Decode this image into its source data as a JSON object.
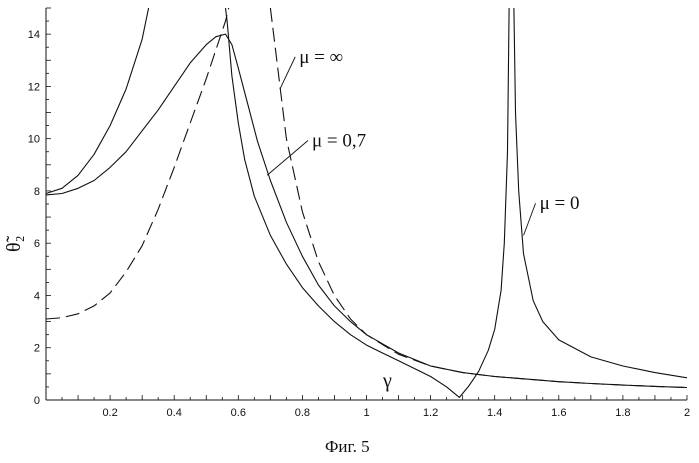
{
  "chart_data": {
    "type": "line",
    "title": "",
    "caption": "Фиг. 5",
    "xlabel": "γ",
    "ylabel": "θ̃₂",
    "xlim": [
      0,
      2
    ],
    "ylim": [
      0,
      15
    ],
    "x_ticks": [
      {
        "value": 0.2,
        "label": "0.2"
      },
      {
        "value": 0.4,
        "label": "0.4"
      },
      {
        "value": 0.6,
        "label": "0.6"
      },
      {
        "value": 0.8,
        "label": "0.8"
      },
      {
        "value": 1.0,
        "label": "1"
      },
      {
        "value": 1.2,
        "label": "1.2"
      },
      {
        "value": 1.4,
        "label": "1.4"
      },
      {
        "value": 1.6,
        "label": "1.6"
      },
      {
        "value": 1.8,
        "label": "1.8"
      },
      {
        "value": 2.0,
        "label": "2"
      }
    ],
    "y_ticks": [
      {
        "value": 0,
        "label": "0"
      },
      {
        "value": 2,
        "label": "2"
      },
      {
        "value": 4,
        "label": "4"
      },
      {
        "value": 6,
        "label": "6"
      },
      {
        "value": 8,
        "label": "8"
      },
      {
        "value": 10,
        "label": "10"
      },
      {
        "value": 12,
        "label": "12"
      },
      {
        "value": 14,
        "label": "14"
      }
    ],
    "grid": false,
    "series": [
      {
        "name": "μ = ∞",
        "style": "dashed",
        "color": "#111111",
        "points": [
          [
            0.0,
            3.1
          ],
          [
            0.05,
            3.15
          ],
          [
            0.1,
            3.3
          ],
          [
            0.15,
            3.6
          ],
          [
            0.2,
            4.1
          ],
          [
            0.25,
            4.9
          ],
          [
            0.3,
            5.9
          ],
          [
            0.35,
            7.3
          ],
          [
            0.4,
            8.9
          ],
          [
            0.45,
            10.6
          ],
          [
            0.5,
            12.3
          ],
          [
            0.53,
            13.4
          ],
          [
            0.56,
            14.5
          ],
          [
            0.57,
            15.0
          ],
          null,
          [
            0.7,
            15.0
          ],
          [
            0.72,
            13.0
          ],
          [
            0.75,
            10.0
          ],
          [
            0.8,
            7.2
          ],
          [
            0.85,
            5.3
          ],
          [
            0.9,
            4.0
          ],
          [
            0.95,
            3.1
          ],
          [
            1.0,
            2.5
          ],
          [
            1.1,
            1.75
          ],
          [
            1.2,
            1.3
          ],
          [
            1.3,
            1.05
          ],
          [
            1.4,
            0.9
          ],
          [
            1.5,
            0.8
          ],
          [
            1.6,
            0.7
          ],
          [
            1.7,
            0.63
          ],
          [
            1.8,
            0.57
          ],
          [
            1.9,
            0.52
          ],
          [
            2.0,
            0.48
          ]
        ]
      },
      {
        "name": "μ = 0,7",
        "style": "solid",
        "color": "#111111",
        "points": [
          [
            0.0,
            7.85
          ],
          [
            0.05,
            7.9
          ],
          [
            0.1,
            8.1
          ],
          [
            0.15,
            8.4
          ],
          [
            0.2,
            8.9
          ],
          [
            0.25,
            9.5
          ],
          [
            0.3,
            10.3
          ],
          [
            0.35,
            11.1
          ],
          [
            0.4,
            12.0
          ],
          [
            0.45,
            12.9
          ],
          [
            0.5,
            13.6
          ],
          [
            0.53,
            13.9
          ],
          [
            0.56,
            14.0
          ],
          [
            0.58,
            13.6
          ],
          [
            0.6,
            12.7
          ],
          [
            0.63,
            11.3
          ],
          [
            0.66,
            9.9
          ],
          [
            0.7,
            8.4
          ],
          [
            0.75,
            6.8
          ],
          [
            0.8,
            5.5
          ],
          [
            0.85,
            4.4
          ],
          [
            0.9,
            3.6
          ],
          [
            0.95,
            3.0
          ],
          [
            1.0,
            2.5
          ],
          [
            1.1,
            1.8
          ],
          [
            1.2,
            1.3
          ],
          [
            1.3,
            1.05
          ],
          [
            1.4,
            0.9
          ],
          [
            1.5,
            0.8
          ],
          [
            1.6,
            0.7
          ],
          [
            1.7,
            0.63
          ],
          [
            1.8,
            0.57
          ],
          [
            1.9,
            0.52
          ],
          [
            2.0,
            0.48
          ]
        ]
      },
      {
        "name": "μ = 0",
        "style": "solid",
        "color": "#111111",
        "points": [
          [
            0.0,
            7.9
          ],
          [
            0.05,
            8.1
          ],
          [
            0.1,
            8.6
          ],
          [
            0.15,
            9.4
          ],
          [
            0.2,
            10.5
          ],
          [
            0.25,
            11.9
          ],
          [
            0.3,
            13.8
          ],
          [
            0.32,
            15.0
          ],
          null,
          [
            0.56,
            15.0
          ],
          [
            0.565,
            14.5
          ],
          [
            0.58,
            12.4
          ],
          [
            0.6,
            10.6
          ],
          [
            0.62,
            9.2
          ],
          [
            0.65,
            7.8
          ],
          [
            0.7,
            6.3
          ],
          [
            0.75,
            5.2
          ],
          [
            0.8,
            4.3
          ],
          [
            0.85,
            3.6
          ],
          [
            0.9,
            3.0
          ],
          [
            0.95,
            2.5
          ],
          [
            1.0,
            2.1
          ],
          [
            1.05,
            1.8
          ],
          [
            1.1,
            1.5
          ],
          [
            1.15,
            1.2
          ],
          [
            1.2,
            0.9
          ],
          [
            1.25,
            0.5
          ],
          [
            1.29,
            0.1
          ],
          [
            1.32,
            0.55
          ],
          [
            1.35,
            1.1
          ],
          [
            1.38,
            1.9
          ],
          [
            1.4,
            2.7
          ],
          [
            1.42,
            4.2
          ],
          [
            1.43,
            6.0
          ],
          [
            1.44,
            9.5
          ],
          [
            1.445,
            15.0
          ],
          null,
          [
            1.46,
            15.0
          ],
          [
            1.465,
            11.0
          ],
          [
            1.475,
            8.0
          ],
          [
            1.49,
            5.6
          ],
          [
            1.52,
            3.8
          ],
          [
            1.55,
            3.0
          ],
          [
            1.6,
            2.3
          ],
          [
            1.7,
            1.65
          ],
          [
            1.8,
            1.3
          ],
          [
            1.9,
            1.05
          ],
          [
            2.0,
            0.85
          ]
        ]
      }
    ],
    "annotations": [
      {
        "text": "μ = ∞",
        "at": [
          0.79,
          12.9
        ],
        "pointer_to": [
          0.73,
          11.9
        ]
      },
      {
        "text": "μ = 0,7",
        "at": [
          0.83,
          9.7
        ],
        "pointer_to": [
          0.69,
          8.6
        ]
      },
      {
        "text": "μ = 0",
        "at": [
          1.54,
          7.3
        ],
        "pointer_to": [
          1.49,
          6.3
        ]
      }
    ]
  }
}
